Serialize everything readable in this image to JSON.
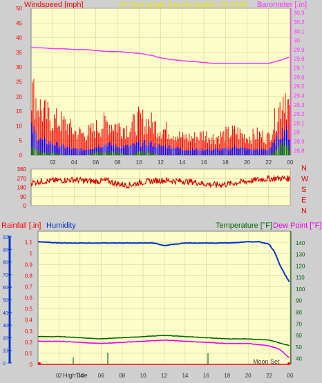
{
  "header": {
    "left_title": "Windspeed [mph]",
    "center_title": "24 hour graph day  November 26 2025",
    "right_title": "Barometer [.in]"
  },
  "lower_header": {
    "rainfall_title": "Rainfall [.in]",
    "humidity_title": "Humidity",
    "temperature_title": "Temperature [°F]",
    "dewpoint_title": "Dew Point [°F]"
  },
  "colors": {
    "plot_bg": "#fdfdc9",
    "page_bg": "#cfcfcf",
    "wind_gust": "#ff0000",
    "wind_avg": "#0000ff",
    "wind_min": "#008000",
    "barometer": "#ff33ff",
    "direction": "#dd0000",
    "humidity": "#0033cc",
    "temperature": "#006600",
    "dewpoint": "#ee00ee",
    "rain": "#ff0000",
    "title_yellow": "#e6e600",
    "grid": "#cccc99"
  },
  "chart_data": [
    {
      "type": "line",
      "name": "wind-barometer",
      "x_ticks": [
        "02",
        "04",
        "06",
        "08",
        "10",
        "12",
        "14",
        "16",
        "18",
        "20",
        "22",
        "00"
      ],
      "x_range_hours": [
        0,
        24
      ],
      "y_left_label": "Windspeed [mph]",
      "y_left_ticks": [
        0,
        5,
        10,
        15,
        20,
        25,
        30,
        35,
        40,
        45,
        50
      ],
      "y_left_range": [
        0,
        50
      ],
      "y_right_label": "Barometer [.in]",
      "y_right_ticks": [
        "28.8",
        "28.9",
        "29",
        "29.1",
        "29.2",
        "29.3",
        "29.4",
        "29.5",
        "29.6",
        "29.7",
        "29.8",
        "29.9",
        "30",
        "30.1",
        "30.2",
        "30.3"
      ],
      "y_right_range": [
        28.75,
        30.35
      ],
      "barometer": {
        "hours": [
          0,
          1,
          2,
          3,
          4,
          5,
          6,
          7,
          8,
          9,
          10,
          11,
          12,
          13,
          14,
          15,
          16,
          17,
          18,
          19,
          20,
          21,
          22,
          23,
          24
        ],
        "values": [
          29.92,
          29.92,
          29.91,
          29.91,
          29.9,
          29.9,
          29.89,
          29.88,
          29.88,
          29.87,
          29.86,
          29.84,
          29.81,
          29.79,
          29.78,
          29.77,
          29.76,
          29.75,
          29.75,
          29.75,
          29.75,
          29.75,
          29.75,
          29.78,
          29.82
        ]
      },
      "wind_gust_mph": {
        "hours": [
          0,
          1,
          2,
          3,
          4,
          5,
          6,
          7,
          8,
          9,
          10,
          11,
          12,
          13,
          14,
          15,
          16,
          17,
          18,
          19,
          20,
          21,
          22,
          22.5,
          23,
          23.5,
          24
        ],
        "values": [
          22,
          15,
          12,
          11,
          8,
          7,
          9,
          11,
          10,
          9,
          12,
          11,
          9,
          8,
          6,
          6,
          7,
          6,
          7,
          8,
          6,
          7,
          6,
          11,
          16,
          22,
          14
        ]
      },
      "wind_avg_mph": {
        "hours": [
          0,
          1,
          2,
          3,
          4,
          5,
          6,
          7,
          8,
          9,
          10,
          11,
          12,
          13,
          14,
          15,
          16,
          17,
          18,
          19,
          20,
          21,
          22,
          22.5,
          23,
          23.5,
          24
        ],
        "values": [
          9,
          5,
          4,
          3,
          2,
          2,
          3,
          4,
          3,
          3,
          4,
          4,
          3,
          3,
          2,
          2,
          2,
          2,
          2,
          3,
          2,
          2,
          2,
          4,
          7,
          9,
          6
        ]
      },
      "wind_min_mph": {
        "hours": [
          0,
          1,
          2,
          3,
          4,
          5,
          6,
          7,
          8,
          9,
          10,
          11,
          12,
          13,
          14,
          15,
          16,
          17,
          18,
          19,
          20,
          21,
          22,
          22.5,
          23,
          23.5,
          24
        ],
        "values": [
          3,
          1,
          1,
          0,
          0,
          0,
          1,
          1,
          1,
          0,
          1,
          1,
          0,
          0,
          0,
          0,
          0,
          0,
          0,
          0,
          0,
          0,
          0,
          1,
          3,
          4,
          2
        ]
      }
    },
    {
      "type": "line",
      "name": "wind-direction",
      "y_left_ticks": [
        0,
        90,
        180,
        270,
        360
      ],
      "y_range": [
        0,
        360
      ],
      "y_right_labels": [
        "N",
        "W",
        "S",
        "E",
        "N"
      ],
      "direction_deg": {
        "hours": [
          0,
          1,
          2,
          3,
          4,
          5,
          6,
          7,
          8,
          9,
          10,
          11,
          12,
          13,
          14,
          15,
          16,
          17,
          18,
          19,
          20,
          21,
          22,
          23,
          24
        ],
        "values": [
          225,
          240,
          245,
          250,
          255,
          245,
          240,
          245,
          215,
          200,
          225,
          240,
          250,
          245,
          240,
          235,
          215,
          205,
          210,
          225,
          240,
          255,
          265,
          270,
          265
        ]
      }
    },
    {
      "type": "line",
      "name": "humidity-temperature",
      "x_ticks": [
        "02",
        "04",
        "06",
        "08",
        "10",
        "12",
        "14",
        "16",
        "18",
        "20",
        "22",
        "00"
      ],
      "y_rain_ticks": [
        "0",
        "0.1",
        "0.2",
        "0.3",
        "0.4",
        "0.5",
        "0.6",
        "0.7",
        "0.8",
        "0.9",
        "1",
        "1.1"
      ],
      "y_rain_range": [
        0,
        1.2
      ],
      "y_temp_ticks": [
        40,
        50,
        60,
        70,
        80,
        90,
        100,
        110,
        120,
        130,
        140
      ],
      "y_temp_range": [
        35,
        150
      ],
      "y_humidity_left_ticks": [
        0,
        10,
        20,
        30,
        40,
        50,
        60,
        70,
        80,
        90,
        100
      ],
      "y_humidity_range": [
        0,
        100
      ],
      "humidity_pct": {
        "hours": [
          0,
          2,
          4,
          6,
          8,
          10,
          11,
          12,
          13,
          14,
          16,
          18,
          20,
          21,
          22,
          22.5,
          23,
          23.5,
          24
        ],
        "values": [
          96,
          95,
          95,
          95,
          95,
          95,
          95,
          93,
          94,
          95,
          95,
          95,
          96,
          96,
          94,
          88,
          78,
          70,
          63
        ]
      },
      "temperature_f": {
        "hours": [
          0,
          2,
          4,
          6,
          8,
          10,
          12,
          14,
          16,
          18,
          20,
          22,
          24
        ],
        "values": [
          59,
          59,
          58,
          57,
          58,
          59,
          60,
          59,
          58,
          57,
          57,
          56,
          51
        ]
      },
      "dewpoint_f": {
        "hours": [
          0,
          2,
          4,
          6,
          8,
          10,
          12,
          14,
          16,
          18,
          20,
          22,
          23,
          24
        ],
        "values": [
          55,
          55,
          54,
          53,
          54,
          55,
          56,
          55,
          54,
          53,
          53,
          51,
          48,
          40
        ]
      },
      "rain_in": {
        "hours": [
          0,
          24
        ],
        "values": [
          0.0,
          0.0
        ]
      },
      "annotations": {
        "high_tide": "HighTide",
        "moon_set": "Moon Set"
      }
    }
  ]
}
